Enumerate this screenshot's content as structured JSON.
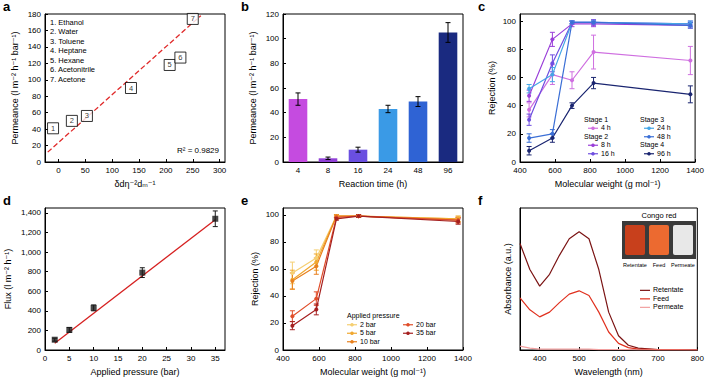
{
  "chart_data": [
    {
      "type": "scatter",
      "title": "a",
      "x_label": "δdη⁻²dₘ⁻¹",
      "y_label": "Permeance (l m⁻² h⁻¹ bar⁻¹)",
      "x": [
        -10,
        25,
        53,
        135,
        207,
        227,
        250
      ],
      "values": [
        41,
        50,
        56,
        90,
        118,
        127,
        174
      ],
      "point_labels": [
        "1",
        "2",
        "3",
        "4",
        "5",
        "6",
        "7"
      ],
      "key": [
        "1. Ethanol",
        "2. Water",
        "3. Toluene",
        "4. Heptane",
        "5. Hexane",
        "6. Acetonitrile",
        "7. Acetone"
      ],
      "marker": "square",
      "color": "#000000",
      "fit_line": {
        "x": [
          -20,
          265
        ],
        "values": [
          12,
          178
        ],
        "color": "#e02a2a",
        "line_style": "dashed"
      },
      "annotations": [
        "R² = 0.9829"
      ],
      "xlim": [
        -25,
        310
      ],
      "xticks": [
        0,
        50,
        100,
        150,
        200,
        250,
        300
      ],
      "ylim": [
        0,
        180
      ],
      "yticks": [
        0,
        20,
        40,
        60,
        80,
        100,
        120,
        140,
        160,
        180
      ]
    },
    {
      "type": "bar",
      "title": "b",
      "x_label": "Reaction time (h)",
      "y_label": "Permeance (l m⁻² h⁻¹ bar⁻¹)",
      "categories": [
        "4",
        "8",
        "16",
        "24",
        "48",
        "96"
      ],
      "values": [
        51,
        3,
        10,
        43,
        49,
        105
      ],
      "errors": [
        5,
        1,
        2,
        3,
        4,
        8
      ],
      "colors": [
        "#c54be0",
        "#9040d6",
        "#6a4fe0",
        "#3a9ae6",
        "#2f63d4",
        "#1a2a80"
      ],
      "ylim": [
        0,
        120
      ],
      "yticks": [
        0,
        20,
        40,
        60,
        80,
        100,
        120
      ]
    },
    {
      "type": "line",
      "title": "c",
      "x_label": "Molecular weight (g mol⁻¹)",
      "y_label": "Rejection (%)",
      "x": [
        452,
        585,
        697,
        820,
        1373
      ],
      "series": [
        {
          "name": "4 h",
          "color": "#cf6fe0",
          "values": [
            37,
            62,
            58,
            78,
            72
          ],
          "errors": [
            5,
            7,
            6,
            12,
            10
          ]
        },
        {
          "name": "8 h",
          "color": "#9a3fd9",
          "values": [
            47,
            87,
            98,
            98,
            97
          ],
          "errors": [
            4,
            5,
            2,
            2,
            2
          ]
        },
        {
          "name": "16 h",
          "color": "#6f4fe0",
          "values": [
            30,
            70,
            99,
            99,
            98
          ],
          "errors": [
            4,
            6,
            1,
            2,
            2
          ]
        },
        {
          "name": "24 h",
          "color": "#44a6e6",
          "values": [
            52,
            62,
            99,
            99,
            98
          ],
          "errors": [
            3,
            5,
            1,
            1,
            2
          ]
        },
        {
          "name": "48 h",
          "color": "#3b6fd6",
          "values": [
            17,
            20,
            99,
            99,
            97
          ],
          "errors": [
            3,
            3,
            1,
            1,
            2
          ]
        },
        {
          "name": "96 h",
          "color": "#1a2570",
          "values": [
            8,
            17,
            40,
            56,
            48
          ],
          "errors": [
            3,
            3,
            2,
            4,
            6
          ]
        }
      ],
      "legend_groups": [
        {
          "title": "Stage 1",
          "series": [
            "4 h"
          ]
        },
        {
          "title": "Stage 2",
          "series": [
            "8 h",
            "16 h"
          ]
        },
        {
          "title": "Stage 3",
          "series": [
            "24 h",
            "48 h"
          ]
        },
        {
          "title": "Stage 4",
          "series": [
            "96 h"
          ]
        }
      ],
      "legend": "lower right",
      "marker": "circle",
      "xlim": [
        400,
        1400
      ],
      "xticks": [
        400,
        600,
        800,
        1000,
        1200,
        1400
      ],
      "ylim": [
        0,
        105
      ],
      "yticks": [
        0,
        20,
        40,
        60,
        80,
        100
      ]
    },
    {
      "type": "scatter",
      "title": "d",
      "x_label": "Applied pressure (bar)",
      "y_label": "Flux (l m⁻² h⁻¹)",
      "x": [
        2,
        5,
        10,
        20,
        35
      ],
      "values": [
        105,
        205,
        430,
        790,
        1340
      ],
      "errors": [
        15,
        25,
        30,
        50,
        80
      ],
      "marker": "square",
      "color": "#1a1a1a",
      "fit_line": {
        "x": [
          2,
          35
        ],
        "values": [
          70,
          1330
        ],
        "color": "#d62020",
        "line_style": "solid"
      },
      "xlim": [
        0,
        37
      ],
      "xticks": [
        0,
        5,
        10,
        15,
        20,
        25,
        30,
        35
      ],
      "ylim": [
        0,
        1450
      ],
      "yticks": [
        0,
        200,
        400,
        600,
        800,
        {
          "value": 1000,
          "label": "1,000"
        },
        {
          "value": 1200,
          "label": "1,200"
        },
        {
          "value": 1400,
          "label": "1,400"
        }
      ]
    },
    {
      "type": "line",
      "title": "e",
      "x_label": "Molecular weight (g mol⁻¹)",
      "y_label": "Rejection (%)",
      "x": [
        452,
        585,
        697,
        820,
        1373
      ],
      "series": [
        {
          "name": "2 bar",
          "color": "#f5cf72",
          "values": [
            57,
            68,
            99,
            99,
            97
          ],
          "errors": [
            8,
            6,
            1,
            1,
            2
          ]
        },
        {
          "name": "5 bar",
          "color": "#f0a830",
          "values": [
            52,
            65,
            99,
            99,
            97
          ],
          "errors": [
            7,
            6,
            1,
            1,
            2
          ]
        },
        {
          "name": "10 bar",
          "color": "#e8801e",
          "values": [
            51,
            62,
            99,
            99,
            96
          ],
          "errors": [
            6,
            6,
            1,
            1,
            2
          ]
        },
        {
          "name": "20 bar",
          "color": "#e04e2a",
          "values": [
            25,
            38,
            98,
            99,
            96
          ],
          "errors": [
            4,
            5,
            1,
            1,
            2
          ]
        },
        {
          "name": "35 bar",
          "color": "#a52020",
          "values": [
            18,
            30,
            97,
            99,
            95
          ],
          "errors": [
            3,
            4,
            1,
            1,
            2
          ]
        }
      ],
      "legend_title": "Applied pressure",
      "legend": "lower right",
      "marker": "circle",
      "xlim": [
        400,
        1400
      ],
      "xticks": [
        400,
        600,
        800,
        1000,
        1200,
        1400
      ],
      "ylim": [
        0,
        105
      ],
      "yticks": [
        0,
        20,
        40,
        60,
        80,
        100
      ]
    },
    {
      "type": "line",
      "title": "f",
      "x_label": "Wavelength (nm)",
      "y_label": "Absorbance (a.u.)",
      "inset_title": "Congo red",
      "x": [
        350,
        375,
        400,
        425,
        450,
        475,
        500,
        525,
        550,
        575,
        600,
        625,
        650,
        700,
        750,
        800
      ],
      "series": [
        {
          "name": "Retentate",
          "color": "#7b1414",
          "values": [
            2.25,
            1.7,
            1.35,
            1.6,
            2.0,
            2.35,
            2.5,
            2.35,
            1.7,
            0.8,
            0.3,
            0.1,
            0.04,
            0.01,
            0.01,
            0.01
          ]
        },
        {
          "name": "Feed",
          "color": "#e0301e",
          "values": [
            1.1,
            0.85,
            0.7,
            0.8,
            1.0,
            1.18,
            1.25,
            1.15,
            0.8,
            0.38,
            0.14,
            0.05,
            0.02,
            0.01,
            0.01,
            0
          ]
        },
        {
          "name": "Permeate",
          "color": "#f2a0a0",
          "values": [
            0.08,
            0.04,
            0.02,
            0.02,
            0.02,
            0.02,
            0.02,
            0.02,
            0.01,
            0.01,
            0.01,
            0.01,
            0,
            0,
            0,
            0
          ]
        }
      ],
      "legend": "right",
      "marker": "none",
      "tick_labels": "x",
      "xlim": [
        350,
        800
      ],
      "xticks": [
        400,
        500,
        600,
        700,
        800
      ],
      "ylim": [
        0,
        3
      ]
    }
  ]
}
